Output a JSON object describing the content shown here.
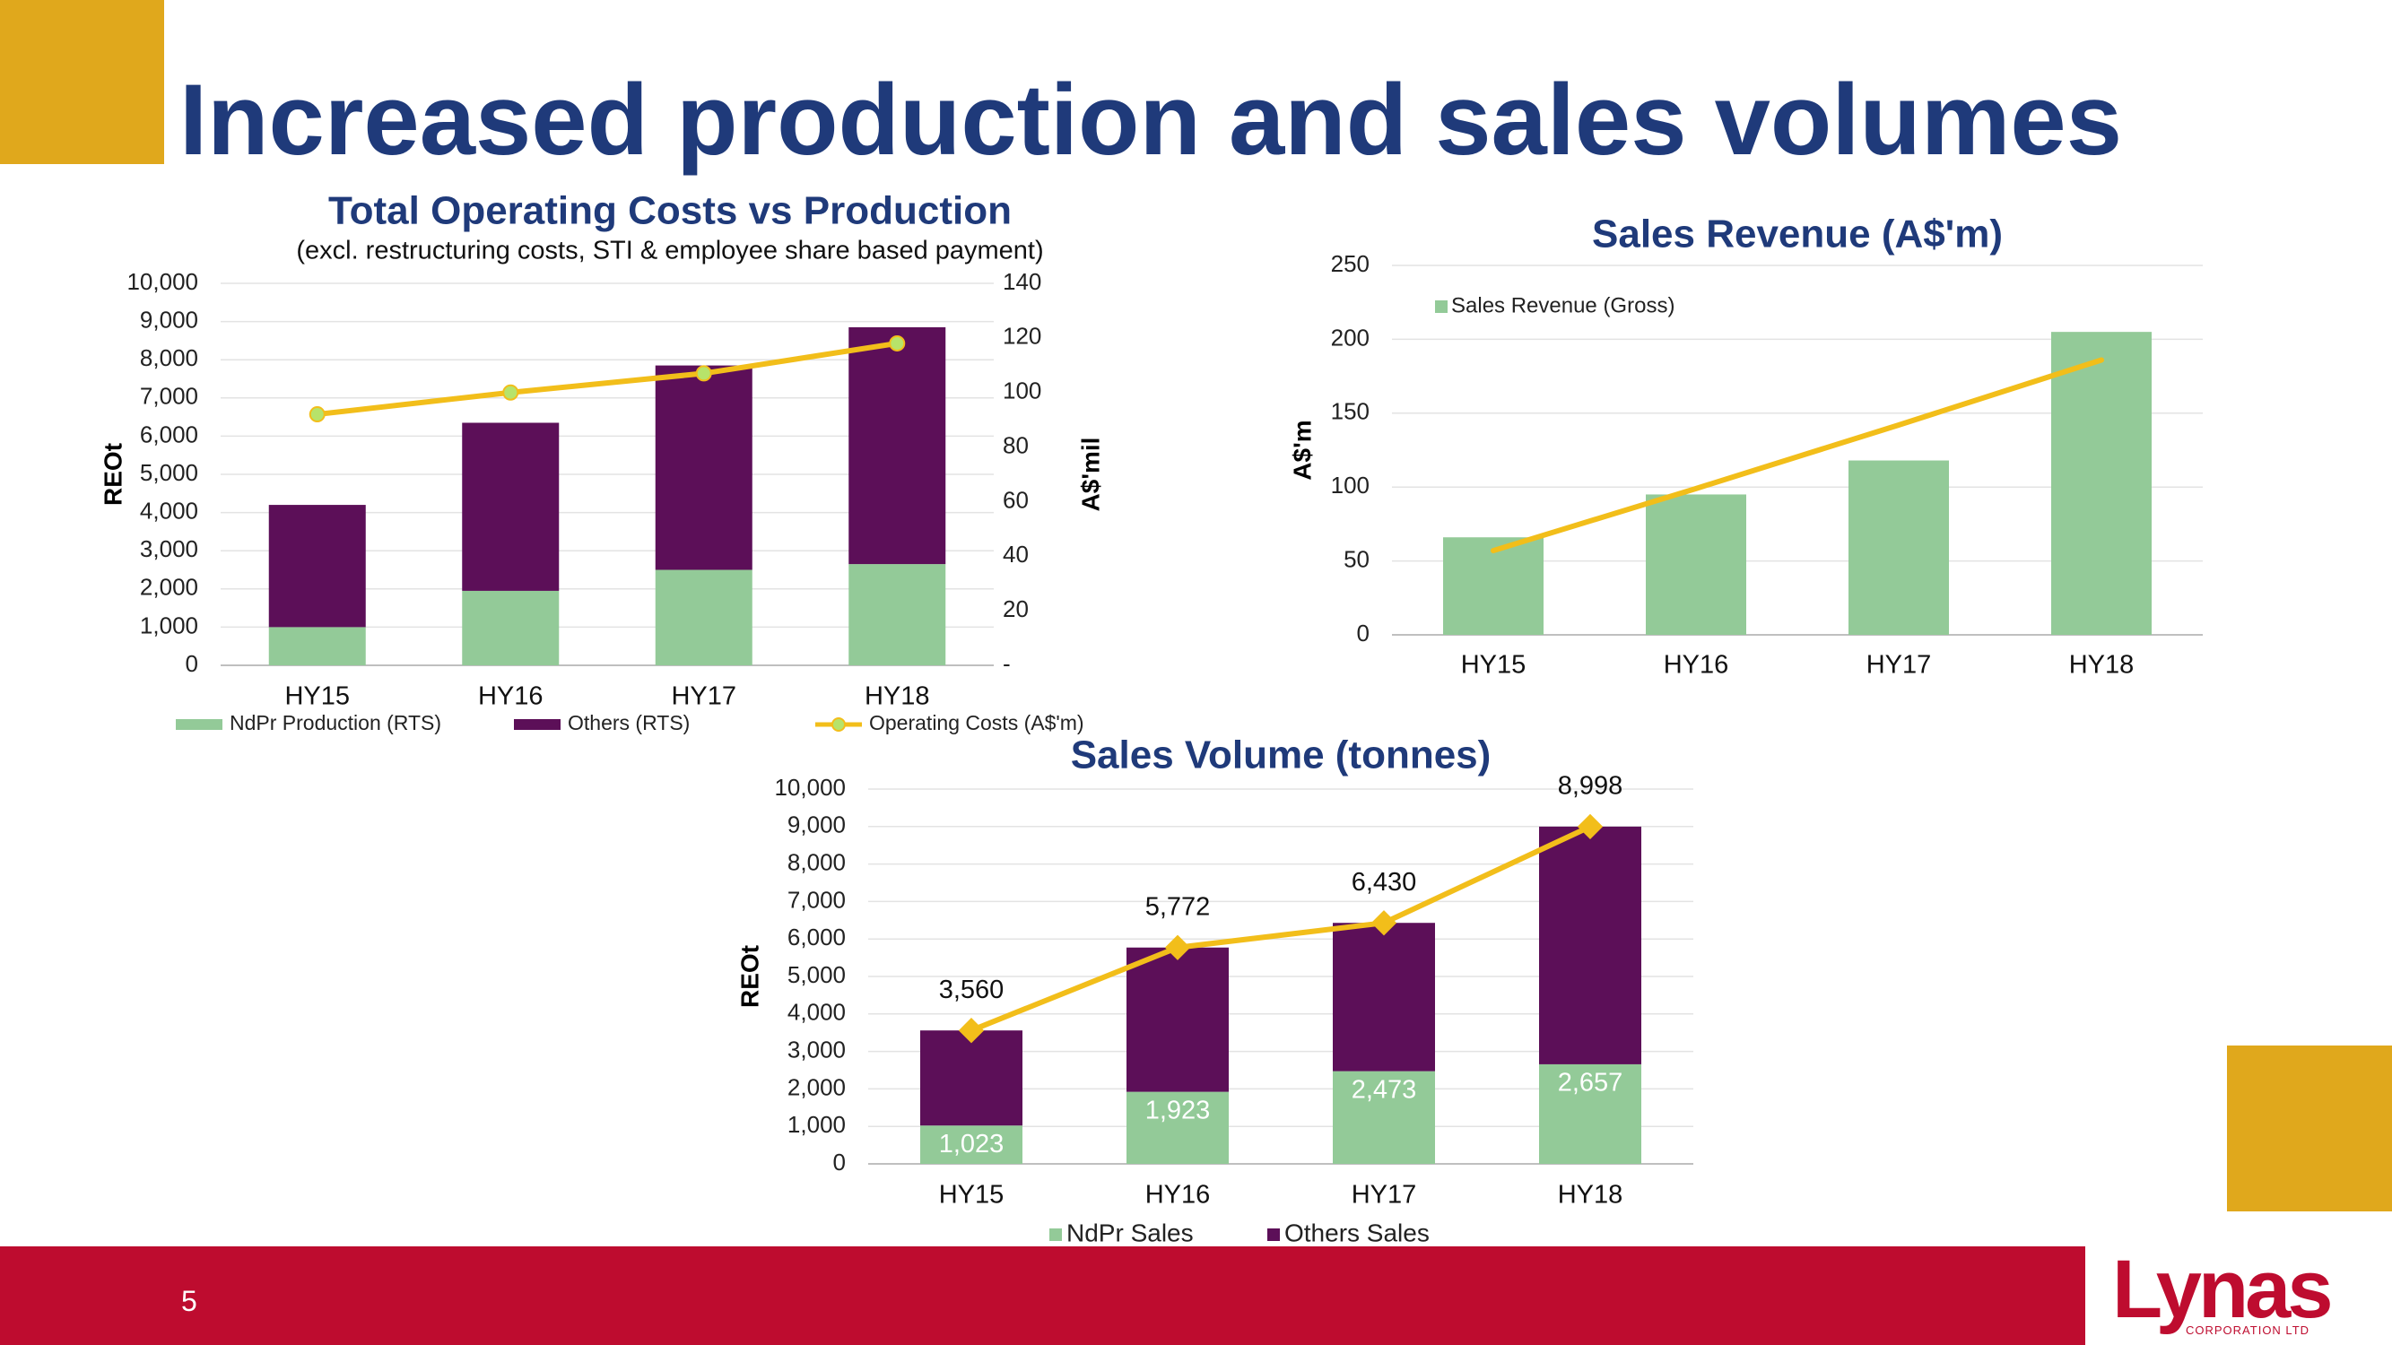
{
  "slide": {
    "title": "Increased production and sales volumes",
    "page_number": "5",
    "logo": "Lynas",
    "logo_sub": "CORPORATION LTD",
    "colors": {
      "gold": "#E0A81C",
      "red": "#BE0C2F",
      "title_blue": "#1F3A7A"
    }
  },
  "chart_data": [
    {
      "type": "bar",
      "stacked": true,
      "title": "Total Operating Costs vs Production",
      "subtitle": "(excl. restructuring costs, STI & employee share based payment)",
      "categories": [
        "HY15",
        "HY16",
        "HY17",
        "HY18"
      ],
      "ylabel": "REOt",
      "y2label": "A$'mil",
      "ylim": [
        0,
        10000
      ],
      "y2lim": [
        0,
        140
      ],
      "yticks": [
        "0",
        "1,000",
        "2,000",
        "3,000",
        "4,000",
        "5,000",
        "6,000",
        "7,000",
        "8,000",
        "9,000",
        "10,000"
      ],
      "y2ticks": [
        "-",
        "20",
        "40",
        "60",
        "80",
        "100",
        "120",
        "140"
      ],
      "series": [
        {
          "name": "NdPr Production (RTS)",
          "type": "bar",
          "color": "#93CA98",
          "values": [
            1000,
            1950,
            2500,
            2650
          ]
        },
        {
          "name": "Others (RTS)",
          "type": "bar",
          "color": "#5C0F58",
          "values": [
            3200,
            4400,
            5350,
            6200
          ]
        },
        {
          "name": "Operating Costs (A$'m)",
          "type": "line",
          "axis": "y2",
          "color": "#F2BE1A",
          "values": [
            92,
            100,
            107,
            118
          ]
        }
      ],
      "legend_position": "bottom"
    },
    {
      "type": "bar",
      "title": "Sales Revenue (A$'m)",
      "categories": [
        "HY15",
        "HY16",
        "HY17",
        "HY18"
      ],
      "ylabel": "A$'m",
      "ylim": [
        0,
        250
      ],
      "yticks": [
        "0",
        "50",
        "100",
        "150",
        "200",
        "250"
      ],
      "series": [
        {
          "name": "Sales Revenue (Gross)",
          "type": "bar",
          "color": "#93CA98",
          "values": [
            66,
            95,
            118,
            205
          ]
        },
        {
          "name": "",
          "type": "line",
          "color": "#F2BE1A",
          "values": [
            57,
            99,
            142,
            186
          ]
        }
      ],
      "legend_position": "top-left"
    },
    {
      "type": "bar",
      "stacked": true,
      "title": "Sales Volume (tonnes)",
      "categories": [
        "HY15",
        "HY16",
        "HY17",
        "HY18"
      ],
      "ylabel": "REOt",
      "ylim": [
        0,
        10000
      ],
      "yticks": [
        "0",
        "1,000",
        "2,000",
        "3,000",
        "4,000",
        "5,000",
        "6,000",
        "7,000",
        "8,000",
        "9,000",
        "10,000"
      ],
      "series": [
        {
          "name": "NdPr Sales",
          "type": "bar",
          "color": "#93CA98",
          "values": [
            1023,
            1923,
            2473,
            2657
          ],
          "labels": [
            "1,023",
            "1,923",
            "2,473",
            "2,657"
          ]
        },
        {
          "name": "Others Sales",
          "type": "bar",
          "color": "#5C0F58",
          "values": [
            2537,
            3849,
            3957,
            6341
          ]
        },
        {
          "name": "",
          "type": "line",
          "color": "#F2BE1A",
          "values": [
            3560,
            5772,
            6430,
            8998
          ],
          "labels": [
            "3,560",
            "5,772",
            "6,430",
            "8,998"
          ]
        }
      ],
      "legend_position": "bottom"
    }
  ]
}
